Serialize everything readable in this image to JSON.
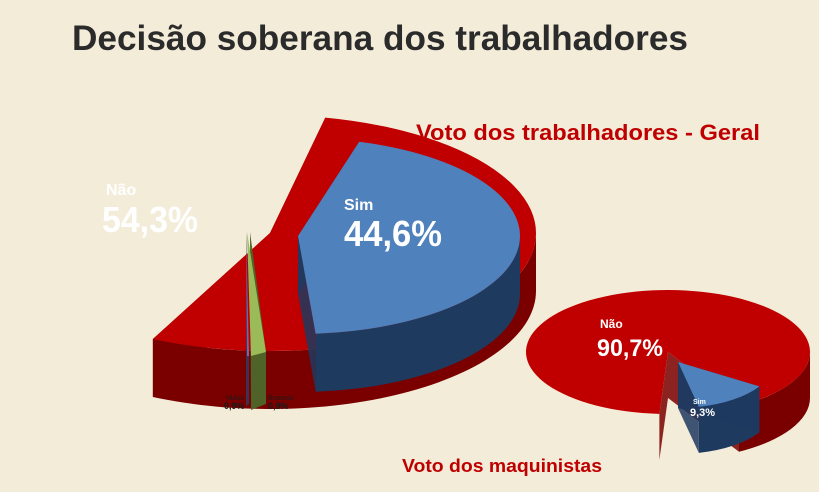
{
  "title": "Decisão soberana dos trabalhadores",
  "colors": {
    "background": "#f3ecd9",
    "nao": "#c00000",
    "nao_side": "#7a0000",
    "sim": "#4f81bd",
    "sim_side": "#1f3a5f",
    "brancos": "#9bbb59",
    "brancos_side": "#4f6228",
    "nulos": "#8064a2",
    "nulos_side": "#3f3151",
    "title": "#2b2b2b",
    "subtitle": "#c00000"
  },
  "chart_data": [
    {
      "type": "pie",
      "title": "Voto dos trabalhadores - Geral",
      "categories": [
        "Não",
        "Sim",
        "Brancos",
        "Nulos"
      ],
      "values": [
        54.3,
        44.6,
        0.9,
        0.9
      ],
      "labels": [
        "54,3%",
        "44,6%",
        "0,9%",
        "0,9%"
      ],
      "exploded": true,
      "style": "3d"
    },
    {
      "type": "pie",
      "title": "Voto dos maquinistas",
      "categories": [
        "Não",
        "Sim"
      ],
      "values": [
        90.7,
        9.3
      ],
      "labels": [
        "90,7%",
        "9,3%"
      ],
      "exploded": true,
      "style": "3d"
    }
  ]
}
